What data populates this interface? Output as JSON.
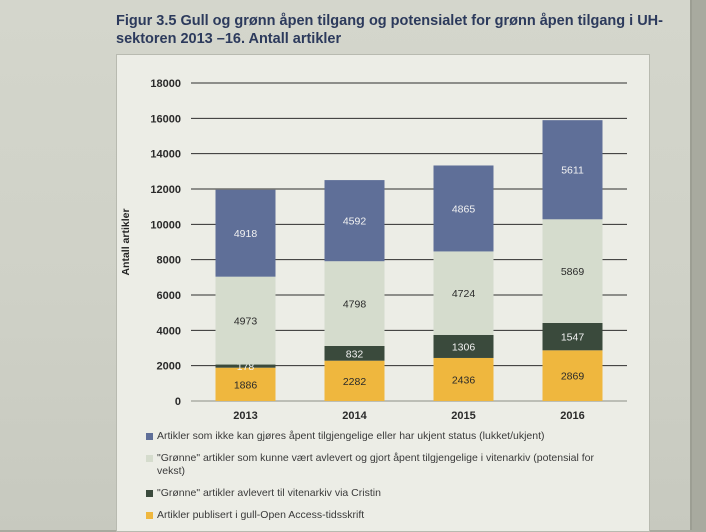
{
  "figure": {
    "title": "Figur 3.5 Gull og grønn åpen tilgang og potensialet for grønn åpen tilgang i UH-sektoren 2013 –16. Antall artikler"
  },
  "colors": {
    "gold": "#efb73e",
    "green_archived": "#3a4a3c",
    "green_potential": "#d5dccd",
    "closed": "#5f6f98",
    "gridline": "#2e2e2e"
  },
  "chart_data": {
    "type": "bar",
    "stacked": true,
    "ylabel": "Antall artikler",
    "xlabel": "",
    "ylim": [
      0,
      18000
    ],
    "yticks": [
      0,
      2000,
      4000,
      6000,
      8000,
      10000,
      12000,
      14000,
      16000,
      18000
    ],
    "categories": [
      "2013",
      "2014",
      "2015",
      "2016"
    ],
    "grid": true,
    "legend_position": "bottom",
    "series": [
      {
        "name": "Artikler publisert i gull-Open Access-tidsskrift",
        "color_key": "gold",
        "values": [
          1886,
          2282,
          2436,
          2869
        ]
      },
      {
        "name": "\"Grønne\" artikler avlevert til vitenarkiv via Cristin",
        "color_key": "green_archived",
        "values": [
          178,
          832,
          1306,
          1547
        ]
      },
      {
        "name": "\"Grønne\" artikler som kunne vært avlevert og gjort åpent tilgjengelige i vitenarkiv (potensial for vekst)",
        "color_key": "green_potential",
        "values": [
          4973,
          4798,
          4724,
          5869
        ]
      },
      {
        "name": "Artikler som ikke kan gjøres åpent tilgjengelige eller har ukjent status (lukket/ukjent)",
        "color_key": "closed",
        "values": [
          4918,
          4592,
          4865,
          5611
        ]
      }
    ]
  },
  "legend_order": [
    3,
    2,
    1,
    0
  ]
}
